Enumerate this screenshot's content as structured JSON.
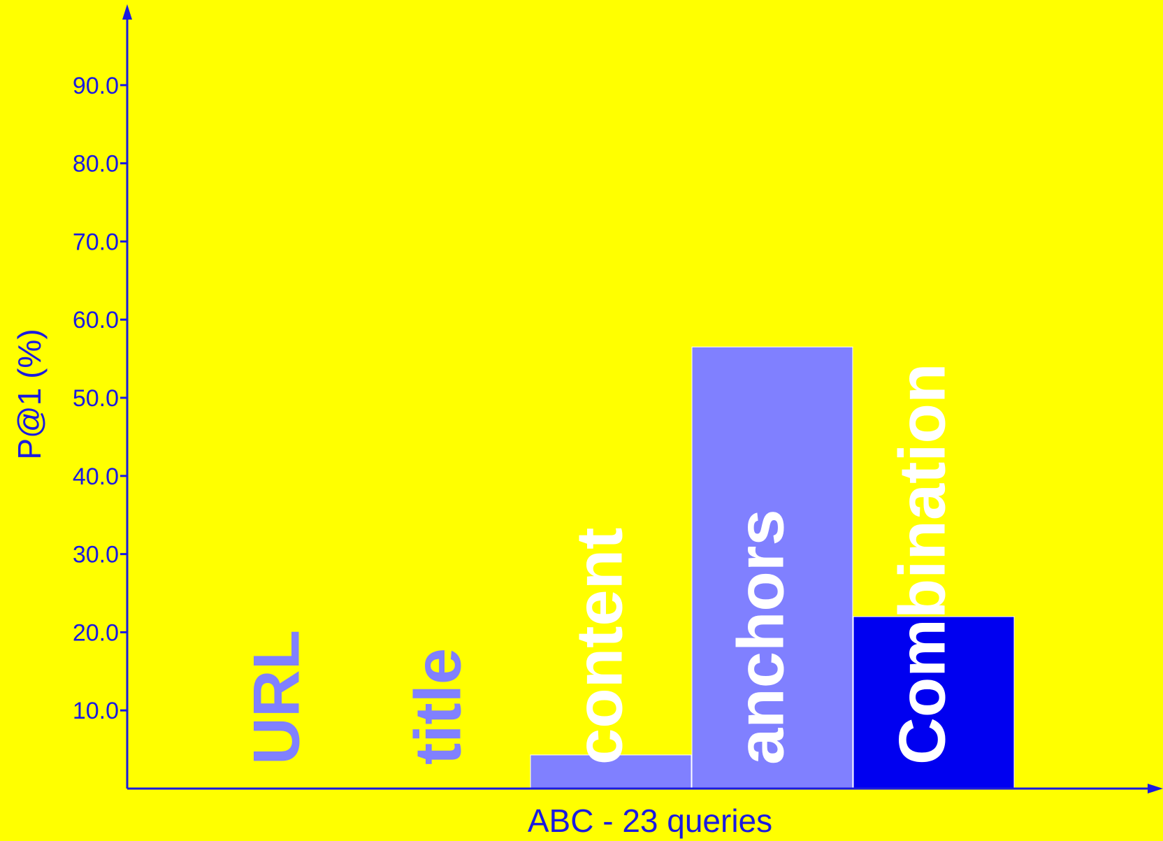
{
  "chart_data": {
    "type": "bar",
    "categories": [
      "URL",
      "title",
      "content",
      "anchors",
      "Combination"
    ],
    "values": [
      0,
      0,
      4.3,
      56.5,
      22.0
    ],
    "xlabel": "ABC - 23 queries",
    "ylabel": "P@1 (%)",
    "ylim": [
      0,
      100
    ],
    "yticks": [
      10,
      20,
      30,
      40,
      50,
      60,
      70,
      80,
      90
    ],
    "ytick_labels": [
      "10.0",
      "20.0",
      "30.0",
      "40.0",
      "50.0",
      "60.0",
      "70.0",
      "80.0",
      "90.0"
    ],
    "grid": false,
    "legend": "none"
  },
  "colors": {
    "background": "#ffff00",
    "axis": "#1a1ae0",
    "bar_light": "#8080ff",
    "bar_dark": "#0000f0",
    "label_light": "#8080ff",
    "label_white": "#ffffff",
    "label_dark": "#0000f0"
  }
}
